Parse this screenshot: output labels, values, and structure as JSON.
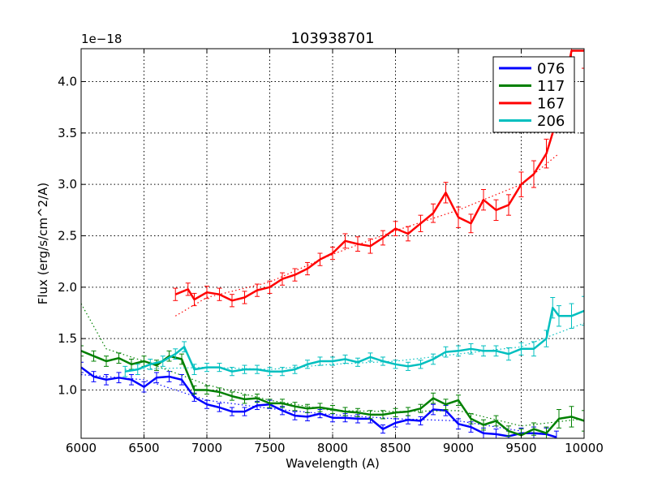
{
  "chart_data": {
    "type": "line",
    "title": "103938701",
    "xlabel": "Wavelength (A)",
    "ylabel": "Flux (erg/s/cm^2/A)",
    "y_offset_label": "1e−18",
    "xlim": [
      6000,
      10000
    ],
    "ylim": [
      0.53,
      4.32
    ],
    "xticks": [
      6000,
      6500,
      7000,
      7500,
      8000,
      8500,
      9000,
      9500,
      10000
    ],
    "xtick_labels": [
      "6000",
      "6500",
      "7000",
      "7500",
      "8000",
      "8500",
      "9000",
      "9500",
      "10000"
    ],
    "yticks": [
      1.0,
      1.5,
      2.0,
      2.5,
      3.0,
      3.5,
      4.0
    ],
    "ytick_labels": [
      "1.0",
      "1.5",
      "2.0",
      "2.5",
      "3.0",
      "3.5",
      "4.0"
    ],
    "grid": true,
    "legend_position": "top-right",
    "series": [
      {
        "name": "076",
        "color": "#0000ff",
        "x": [
          6000,
          6100,
          6200,
          6300,
          6400,
          6500,
          6600,
          6700,
          6800,
          6900,
          7000,
          7100,
          7200,
          7300,
          7400,
          7500,
          7600,
          7700,
          7800,
          7900,
          8000,
          8100,
          8200,
          8300,
          8400,
          8500,
          8600,
          8700,
          8800,
          8900,
          9000,
          9100,
          9200,
          9300,
          9400,
          9500,
          9600,
          9700,
          9780
        ],
        "y": [
          1.22,
          1.13,
          1.1,
          1.12,
          1.1,
          1.03,
          1.12,
          1.13,
          1.1,
          0.93,
          0.86,
          0.83,
          0.79,
          0.79,
          0.85,
          0.86,
          0.8,
          0.75,
          0.74,
          0.77,
          0.73,
          0.73,
          0.72,
          0.72,
          0.62,
          0.68,
          0.71,
          0.7,
          0.81,
          0.8,
          0.67,
          0.64,
          0.58,
          0.57,
          0.55,
          0.58,
          0.58,
          0.57,
          0.54
        ],
        "error": [
          0.05,
          0.05,
          0.05,
          0.05,
          0.05,
          0.05,
          0.05,
          0.05,
          0.05,
          0.04,
          0.04,
          0.04,
          0.04,
          0.04,
          0.04,
          0.04,
          0.04,
          0.04,
          0.04,
          0.04,
          0.04,
          0.04,
          0.04,
          0.04,
          0.04,
          0.04,
          0.04,
          0.04,
          0.05,
          0.05,
          0.05,
          0.05,
          0.05,
          0.05,
          0.05,
          0.05,
          0.06,
          0.06,
          0.06
        ],
        "fit_x": [
          6000,
          6500,
          7000,
          7500,
          8000,
          8500,
          9000,
          9500
        ],
        "fit_y": [
          1.15,
          1.1,
          0.9,
          0.82,
          0.76,
          0.72,
          0.7,
          0.6
        ]
      },
      {
        "name": "117",
        "color": "#008000",
        "x": [
          6000,
          6100,
          6200,
          6300,
          6400,
          6500,
          6600,
          6700,
          6800,
          6900,
          7000,
          7100,
          7200,
          7300,
          7400,
          7500,
          7600,
          7700,
          7800,
          7900,
          8000,
          8100,
          8200,
          8300,
          8400,
          8500,
          8600,
          8700,
          8800,
          8900,
          9000,
          9100,
          9200,
          9300,
          9400,
          9500,
          9600,
          9700,
          9800,
          9900,
          10000
        ],
        "y": [
          1.38,
          1.33,
          1.28,
          1.31,
          1.25,
          1.28,
          1.24,
          1.33,
          1.3,
          1.0,
          1.0,
          0.98,
          0.94,
          0.91,
          0.92,
          0.87,
          0.87,
          0.84,
          0.82,
          0.83,
          0.81,
          0.79,
          0.78,
          0.76,
          0.76,
          0.78,
          0.79,
          0.82,
          0.92,
          0.86,
          0.9,
          0.72,
          0.66,
          0.7,
          0.6,
          0.56,
          0.62,
          0.58,
          0.72,
          0.74,
          0.7
        ],
        "error": [
          0.05,
          0.05,
          0.05,
          0.05,
          0.05,
          0.05,
          0.05,
          0.05,
          0.05,
          0.04,
          0.04,
          0.04,
          0.04,
          0.04,
          0.04,
          0.04,
          0.04,
          0.04,
          0.04,
          0.04,
          0.04,
          0.04,
          0.04,
          0.04,
          0.04,
          0.04,
          0.04,
          0.04,
          0.05,
          0.05,
          0.05,
          0.05,
          0.05,
          0.05,
          0.05,
          0.06,
          0.06,
          0.06,
          0.09,
          0.1,
          0.1
        ],
        "fit_x": [
          6000,
          6200,
          6500,
          7000,
          7500,
          8000,
          8500,
          9000,
          9500,
          10000
        ],
        "fit_y": [
          1.84,
          1.4,
          1.28,
          1.05,
          0.9,
          0.8,
          0.79,
          0.8,
          0.65,
          0.72
        ]
      },
      {
        "name": "167",
        "color": "#ff0000",
        "x": [
          6750,
          6850,
          6900,
          7000,
          7100,
          7200,
          7300,
          7400,
          7500,
          7600,
          7700,
          7800,
          7900,
          8000,
          8100,
          8200,
          8300,
          8400,
          8500,
          8600,
          8700,
          8800,
          8900,
          9000,
          9100,
          9200,
          9300,
          9400,
          9500,
          9600,
          9700,
          9800,
          9900,
          10000
        ],
        "y": [
          1.93,
          1.98,
          1.88,
          1.95,
          1.93,
          1.87,
          1.9,
          1.97,
          2.0,
          2.08,
          2.12,
          2.18,
          2.27,
          2.33,
          2.45,
          2.42,
          2.4,
          2.48,
          2.57,
          2.52,
          2.62,
          2.72,
          2.92,
          2.68,
          2.62,
          2.85,
          2.75,
          2.8,
          3.0,
          3.1,
          3.3,
          3.7,
          4.3,
          4.3
        ],
        "error": [
          0.06,
          0.06,
          0.06,
          0.06,
          0.06,
          0.06,
          0.06,
          0.06,
          0.06,
          0.06,
          0.06,
          0.06,
          0.06,
          0.06,
          0.07,
          0.07,
          0.07,
          0.07,
          0.07,
          0.07,
          0.08,
          0.09,
          0.1,
          0.1,
          0.09,
          0.1,
          0.1,
          0.1,
          0.12,
          0.13,
          0.14,
          0.15,
          0.16,
          0.17
        ],
        "fit_x": [
          6750,
          7000,
          7500,
          8000,
          8500,
          9000,
          9500,
          9800
        ],
        "fit_y": [
          1.72,
          1.9,
          2.05,
          2.32,
          2.55,
          2.75,
          3.0,
          3.3
        ]
      },
      {
        "name": "206",
        "color": "#00bfbf",
        "x": [
          6350,
          6450,
          6550,
          6650,
          6750,
          6820,
          6900,
          7000,
          7100,
          7200,
          7300,
          7400,
          7500,
          7600,
          7700,
          7800,
          7900,
          8000,
          8100,
          8200,
          8300,
          8400,
          8500,
          8600,
          8700,
          8800,
          8900,
          9000,
          9100,
          9200,
          9300,
          9400,
          9500,
          9600,
          9700,
          9750,
          9800,
          9900,
          10000
        ],
        "y": [
          1.18,
          1.2,
          1.25,
          1.28,
          1.35,
          1.42,
          1.2,
          1.22,
          1.22,
          1.18,
          1.2,
          1.2,
          1.18,
          1.18,
          1.2,
          1.25,
          1.28,
          1.28,
          1.3,
          1.27,
          1.32,
          1.28,
          1.25,
          1.23,
          1.25,
          1.3,
          1.37,
          1.38,
          1.4,
          1.38,
          1.38,
          1.35,
          1.4,
          1.4,
          1.5,
          1.8,
          1.72,
          1.72,
          1.77
        ],
        "error": [
          0.05,
          0.05,
          0.05,
          0.05,
          0.05,
          0.05,
          0.05,
          0.04,
          0.04,
          0.04,
          0.04,
          0.04,
          0.04,
          0.04,
          0.04,
          0.04,
          0.04,
          0.04,
          0.04,
          0.04,
          0.04,
          0.04,
          0.04,
          0.04,
          0.04,
          0.05,
          0.05,
          0.05,
          0.05,
          0.05,
          0.05,
          0.06,
          0.06,
          0.07,
          0.08,
          0.1,
          0.1,
          0.12,
          0.14
        ],
        "fit_x": [
          6350,
          7000,
          7500,
          8000,
          8500,
          9000,
          9500,
          10000
        ],
        "fit_y": [
          1.2,
          1.22,
          1.2,
          1.25,
          1.28,
          1.35,
          1.42,
          1.65
        ]
      }
    ]
  }
}
